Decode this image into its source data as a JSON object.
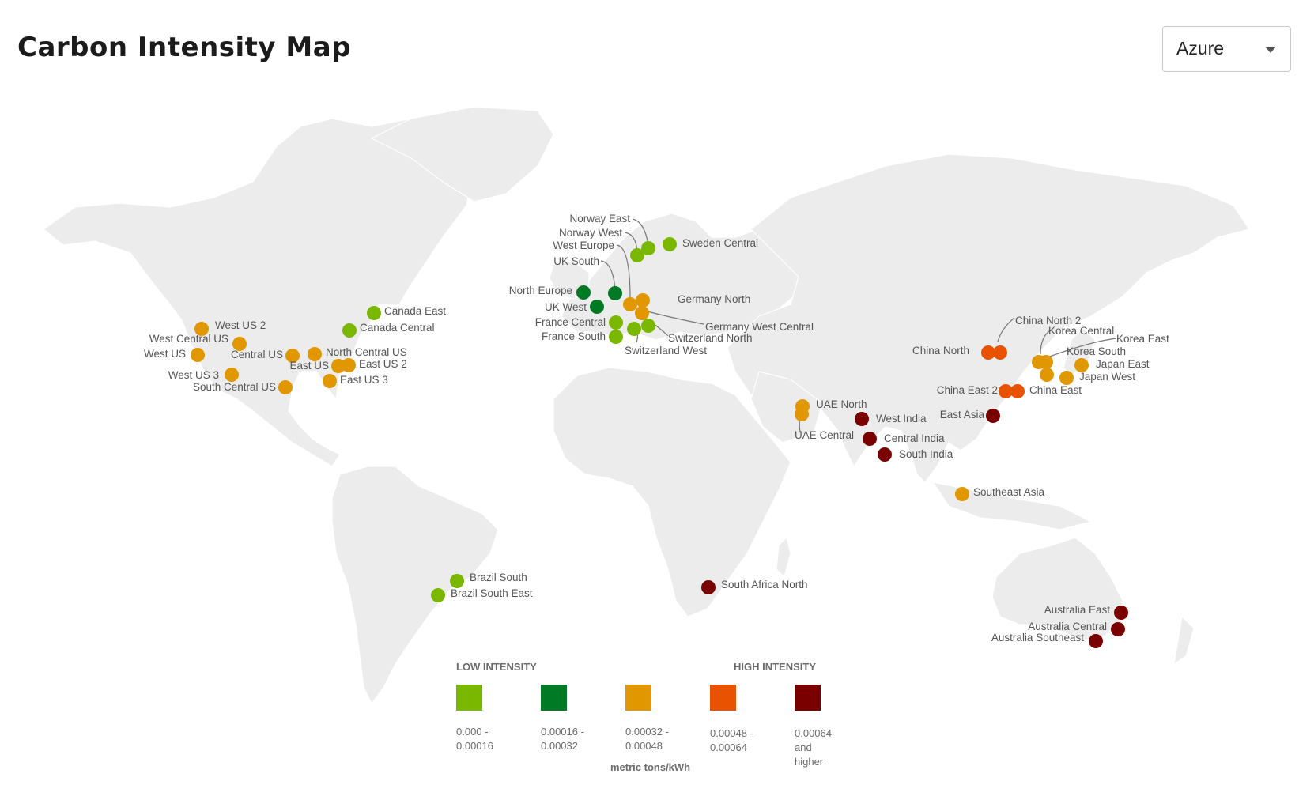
{
  "header": {
    "title": "Carbon Intensity Map"
  },
  "provider_select": {
    "value": "Azure"
  },
  "colors": {
    "land": "#ececec",
    "low1": "#7ab800",
    "low2": "#007a24",
    "mid": "#e09700",
    "high1": "#e85200",
    "high2": "#7a0000"
  },
  "legend": {
    "low_heading": "LOW INTENSITY",
    "high_heading": "HIGH INTENSITY",
    "unit": "metric tons/kWh",
    "bins": [
      {
        "color": "#7ab800",
        "lines": [
          "0.000 -",
          "0.00016"
        ]
      },
      {
        "color": "#007a24",
        "lines": [
          "0.00016 -",
          "0.00032"
        ]
      },
      {
        "color": "#e09700",
        "lines": [
          "0.00032 -",
          "0.00048"
        ]
      },
      {
        "color": "#e85200",
        "lines": [
          "0.00048 -",
          "0.00064"
        ]
      },
      {
        "color": "#7a0000",
        "lines": [
          "0.00064",
          "and",
          "higher"
        ]
      }
    ]
  },
  "regions": [
    {
      "name": "West US 2",
      "lat": 47.2,
      "lon": -119.9,
      "bin": 2
    },
    {
      "name": "West Central US",
      "lat": 41.6,
      "lon": -107.6,
      "bin": 2
    },
    {
      "name": "West US",
      "lat": 37.8,
      "lon": -122.4,
      "bin": 2
    },
    {
      "name": "Central US",
      "lat": 41.6,
      "lon": -93.6,
      "bin": 2
    },
    {
      "name": "North Central US",
      "lat": 41.9,
      "lon": -87.6,
      "bin": 2
    },
    {
      "name": "East US",
      "lat": 37.4,
      "lon": -79.8,
      "bin": 2
    },
    {
      "name": "East US 2",
      "lat": 36.7,
      "lon": -78.4,
      "bin": 2
    },
    {
      "name": "West US 3",
      "lat": 33.4,
      "lon": -112.1,
      "bin": 2
    },
    {
      "name": "South Central US",
      "lat": 29.4,
      "lon": -98.5,
      "bin": 2
    },
    {
      "name": "East US 3",
      "lat": 33.7,
      "lon": -84.4,
      "bin": 2
    },
    {
      "name": "Canada East",
      "lat": 46.8,
      "lon": -71.2,
      "bin": 0
    },
    {
      "name": "Canada Central",
      "lat": 43.7,
      "lon": -79.4,
      "bin": 0
    },
    {
      "name": "Brazil South",
      "lat": -23.6,
      "lon": -46.6,
      "bin": 0
    },
    {
      "name": "Brazil South East",
      "lat": -22.9,
      "lon": -43.2,
      "bin": 0
    },
    {
      "name": "Norway East",
      "lat": 59.9,
      "lon": 10.8,
      "bin": 0
    },
    {
      "name": "Norway West",
      "lat": 59.0,
      "lon": 5.7,
      "bin": 0
    },
    {
      "name": "Sweden Central",
      "lat": 60.7,
      "lon": 17.1,
      "bin": 0
    },
    {
      "name": "West Europe",
      "lat": 52.4,
      "lon": 4.9,
      "bin": 2
    },
    {
      "name": "UK South",
      "lat": 51.5,
      "lon": -0.1,
      "bin": 1
    },
    {
      "name": "North Europe",
      "lat": 53.3,
      "lon": -6.3,
      "bin": 1
    },
    {
      "name": "UK West",
      "lat": 51.5,
      "lon": -3.2,
      "bin": 1
    },
    {
      "name": "Germany North",
      "lat": 53.1,
      "lon": 8.8,
      "bin": 2
    },
    {
      "name": "Germany West Central",
      "lat": 50.1,
      "lon": 8.7,
      "bin": 2
    },
    {
      "name": "France Central",
      "lat": 48.9,
      "lon": 2.4,
      "bin": 0
    },
    {
      "name": "France South",
      "lat": 43.8,
      "lon": 2.1,
      "bin": 0
    },
    {
      "name": "Switzerland North",
      "lat": 47.4,
      "lon": 8.6,
      "bin": 0
    },
    {
      "name": "Switzerland West",
      "lat": 46.2,
      "lon": 6.1,
      "bin": 0
    },
    {
      "name": "UAE North",
      "lat": 25.3,
      "lon": 55.3,
      "bin": 2
    },
    {
      "name": "UAE Central",
      "lat": 24.5,
      "lon": 54.4,
      "bin": 2
    },
    {
      "name": "West India",
      "lat": 19.1,
      "lon": 72.9,
      "bin": 4
    },
    {
      "name": "Central India",
      "lat": 18.6,
      "lon": 73.9,
      "bin": 4
    },
    {
      "name": "South India",
      "lat": 13.1,
      "lon": 80.3,
      "bin": 4
    },
    {
      "name": "South Africa North",
      "lat": -25.7,
      "lon": 28.2,
      "bin": 4
    },
    {
      "name": "China North",
      "lat": 39.9,
      "lon": 116.4,
      "bin": 3
    },
    {
      "name": "China North 2",
      "lat": 39.9,
      "lon": 116.4,
      "bin": 3
    },
    {
      "name": "China East",
      "lat": 31.2,
      "lon": 121.5,
      "bin": 3
    },
    {
      "name": "China East 2",
      "lat": 31.2,
      "lon": 121.5,
      "bin": 3
    },
    {
      "name": "East Asia",
      "lat": 22.3,
      "lon": 114.2,
      "bin": 4
    },
    {
      "name": "Southeast Asia",
      "lat": 1.3,
      "lon": 103.8,
      "bin": 2
    },
    {
      "name": "Korea Central",
      "lat": 37.6,
      "lon": 127.0,
      "bin": 2
    },
    {
      "name": "Korea East",
      "lat": 37.4,
      "lon": 129.0,
      "bin": 2
    },
    {
      "name": "Korea South",
      "lat": 35.2,
      "lon": 129.1,
      "bin": 2
    },
    {
      "name": "Japan East",
      "lat": 35.7,
      "lon": 139.7,
      "bin": 2
    },
    {
      "name": "Japan West",
      "lat": 34.7,
      "lon": 135.5,
      "bin": 2
    },
    {
      "name": "Australia East",
      "lat": -33.9,
      "lon": 151.2,
      "bin": 4
    },
    {
      "name": "Australia Central",
      "lat": -35.3,
      "lon": 149.1,
      "bin": 4
    },
    {
      "name": "Australia Southeast",
      "lat": -37.8,
      "lon": 145.0,
      "bin": 4
    }
  ]
}
